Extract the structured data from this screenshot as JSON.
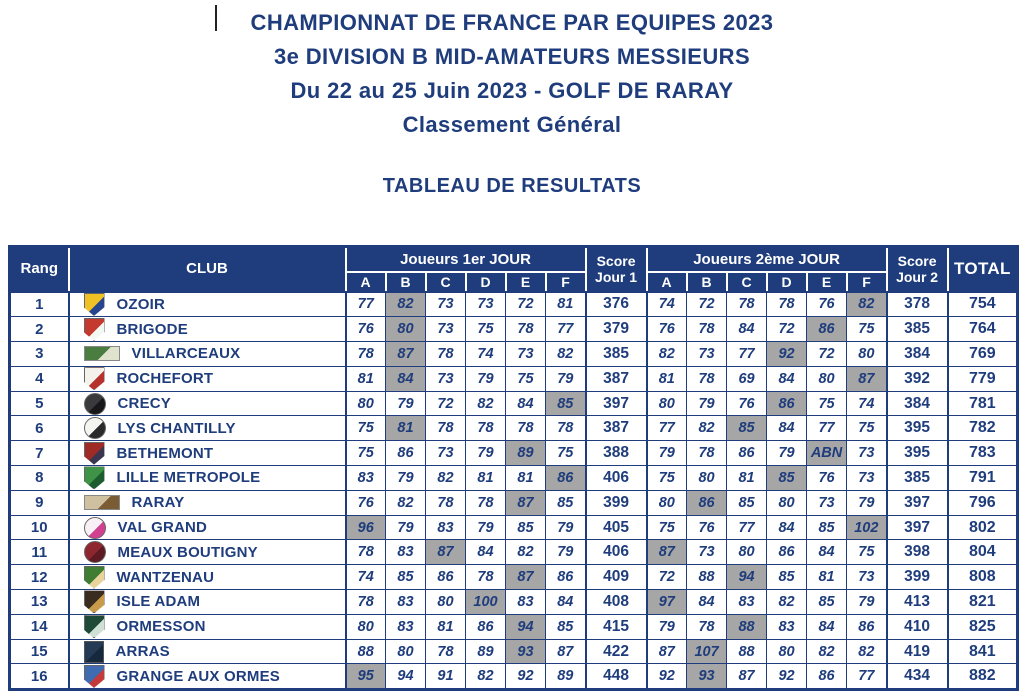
{
  "header": {
    "line1": "CHAMPIONNAT DE FRANCE PAR EQUIPES 2023",
    "line2": "3e DIVISION B MID-AMATEURS MESSIEURS",
    "line3": "Du 22 au 25 Juin 2023 - GOLF DE RARAY",
    "line4": "Classement Général",
    "section_title": "TABLEAU DE RESULTATS"
  },
  "colors": {
    "navy": "#1f3d7c",
    "highlight_gray": "#a6a6a6",
    "header_text": "#ffffff",
    "background": "#ffffff"
  },
  "table": {
    "headers": {
      "rank": "Rang",
      "club": "CLUB",
      "day1_group": "Joueurs 1er JOUR",
      "day2_group": "Joueurs 2ème JOUR",
      "players": [
        "A",
        "B",
        "C",
        "D",
        "E",
        "F"
      ],
      "score_day1_line1": "Score",
      "score_day1_line2": "Jour 1",
      "score_day2_line1": "Score",
      "score_day2_line2": "Jour 2",
      "total": "TOTAL"
    },
    "rows": [
      {
        "rank": "1",
        "club": "OZOIR",
        "logo": {
          "shape": "shield",
          "colors": [
            "#f0c125",
            "#27448f"
          ]
        },
        "day1": [
          "77",
          "82",
          "73",
          "73",
          "72",
          "81"
        ],
        "day1_discard": 1,
        "score1": "376",
        "day2": [
          "74",
          "72",
          "78",
          "78",
          "76",
          "82"
        ],
        "day2_discard": 5,
        "score2": "378",
        "total": "754"
      },
      {
        "rank": "2",
        "club": "BRIGODE",
        "logo": {
          "shape": "shield",
          "colors": [
            "#c43a2e",
            "#f4f8f2"
          ]
        },
        "day1": [
          "76",
          "80",
          "73",
          "75",
          "78",
          "77"
        ],
        "day1_discard": 1,
        "score1": "379",
        "day2": [
          "76",
          "78",
          "84",
          "72",
          "86",
          "75"
        ],
        "day2_discard": 4,
        "score2": "385",
        "total": "764"
      },
      {
        "rank": "3",
        "club": "VILLARCEAUX",
        "logo": {
          "shape": "banner",
          "colors": [
            "#4a7d3f",
            "#dfe3cd"
          ]
        },
        "day1": [
          "78",
          "87",
          "78",
          "74",
          "73",
          "82"
        ],
        "day1_discard": 1,
        "score1": "385",
        "day2": [
          "82",
          "73",
          "77",
          "92",
          "72",
          "80"
        ],
        "day2_discard": 3,
        "score2": "384",
        "total": "769"
      },
      {
        "rank": "4",
        "club": "ROCHEFORT",
        "logo": {
          "shape": "shield",
          "colors": [
            "#f5f2ec",
            "#b5332c"
          ]
        },
        "day1": [
          "81",
          "84",
          "73",
          "79",
          "75",
          "79"
        ],
        "day1_discard": 1,
        "score1": "387",
        "day2": [
          "81",
          "78",
          "69",
          "84",
          "80",
          "87"
        ],
        "day2_discard": 5,
        "score2": "392",
        "total": "779"
      },
      {
        "rank": "5",
        "club": "CRECY",
        "logo": {
          "shape": "round",
          "colors": [
            "#3a3a3c",
            "#17171a"
          ]
        },
        "day1": [
          "80",
          "79",
          "72",
          "82",
          "84",
          "85"
        ],
        "day1_discard": 5,
        "score1": "397",
        "day2": [
          "80",
          "79",
          "76",
          "86",
          "75",
          "74"
        ],
        "day2_discard": 3,
        "score2": "384",
        "total": "781"
      },
      {
        "rank": "6",
        "club": "LYS CHANTILLY",
        "logo": {
          "shape": "round",
          "colors": [
            "#f4f4f0",
            "#2b2b2b"
          ]
        },
        "day1": [
          "75",
          "81",
          "78",
          "78",
          "78",
          "78"
        ],
        "day1_discard": 1,
        "score1": "387",
        "day2": [
          "77",
          "82",
          "85",
          "84",
          "77",
          "75"
        ],
        "day2_discard": 2,
        "score2": "395",
        "total": "782"
      },
      {
        "rank": "7",
        "club": "BETHEMONT",
        "logo": {
          "shape": "shield",
          "colors": [
            "#9e2b25",
            "#3a3550"
          ]
        },
        "day1": [
          "75",
          "86",
          "73",
          "79",
          "89",
          "75"
        ],
        "day1_discard": 4,
        "score1": "388",
        "day2": [
          "79",
          "78",
          "86",
          "79",
          "ABN",
          "73"
        ],
        "day2_discard": 4,
        "score2": "395",
        "total": "783"
      },
      {
        "rank": "8",
        "club": "LILLE METROPOLE",
        "logo": {
          "shape": "shield",
          "colors": [
            "#3f9347",
            "#1c5c2e"
          ]
        },
        "day1": [
          "83",
          "79",
          "82",
          "81",
          "81",
          "86"
        ],
        "day1_discard": 5,
        "score1": "406",
        "day2": [
          "75",
          "80",
          "81",
          "85",
          "76",
          "73"
        ],
        "day2_discard": 3,
        "score2": "385",
        "total": "791"
      },
      {
        "rank": "9",
        "club": "RARAY",
        "logo": {
          "shape": "banner",
          "colors": [
            "#cfc0a0",
            "#7a5c35"
          ]
        },
        "day1": [
          "76",
          "82",
          "78",
          "78",
          "87",
          "85"
        ],
        "day1_discard": 4,
        "score1": "399",
        "day2": [
          "80",
          "86",
          "85",
          "80",
          "73",
          "79"
        ],
        "day2_discard": 1,
        "score2": "397",
        "total": "796"
      },
      {
        "rank": "10",
        "club": "VAL GRAND",
        "logo": {
          "shape": "round",
          "colors": [
            "#f8f0f5",
            "#d2418f"
          ]
        },
        "day1": [
          "96",
          "79",
          "83",
          "79",
          "85",
          "79"
        ],
        "day1_discard": 0,
        "score1": "405",
        "day2": [
          "75",
          "76",
          "77",
          "84",
          "85",
          "102"
        ],
        "day2_discard": 5,
        "score2": "397",
        "total": "802"
      },
      {
        "rank": "11",
        "club": "MEAUX BOUTIGNY",
        "logo": {
          "shape": "round",
          "colors": [
            "#8e2630",
            "#5e1a22"
          ]
        },
        "day1": [
          "78",
          "83",
          "87",
          "84",
          "82",
          "79"
        ],
        "day1_discard": 2,
        "score1": "406",
        "day2": [
          "87",
          "73",
          "80",
          "86",
          "84",
          "75"
        ],
        "day2_discard": 0,
        "score2": "398",
        "total": "804"
      },
      {
        "rank": "12",
        "club": "WANTZENAU",
        "logo": {
          "shape": "shield",
          "colors": [
            "#3f7d33",
            "#e8d49a"
          ]
        },
        "day1": [
          "74",
          "85",
          "86",
          "78",
          "87",
          "86"
        ],
        "day1_discard": 4,
        "score1": "409",
        "day2": [
          "72",
          "88",
          "94",
          "85",
          "81",
          "73"
        ],
        "day2_discard": 2,
        "score2": "399",
        "total": "808"
      },
      {
        "rank": "13",
        "club": "ISLE ADAM",
        "logo": {
          "shape": "shield",
          "colors": [
            "#3a2c1e",
            "#c79b4a"
          ]
        },
        "day1": [
          "78",
          "83",
          "80",
          "100",
          "83",
          "84"
        ],
        "day1_discard": 3,
        "score1": "408",
        "day2": [
          "97",
          "84",
          "83",
          "82",
          "85",
          "79"
        ],
        "day2_discard": 0,
        "score2": "413",
        "total": "821"
      },
      {
        "rank": "14",
        "club": "ORMESSON",
        "logo": {
          "shape": "shield",
          "colors": [
            "#1f4a38",
            "#cfe0d5"
          ]
        },
        "day1": [
          "80",
          "83",
          "81",
          "86",
          "94",
          "85"
        ],
        "day1_discard": 4,
        "score1": "415",
        "day2": [
          "79",
          "78",
          "88",
          "83",
          "84",
          "86"
        ],
        "day2_discard": 2,
        "score2": "410",
        "total": "825"
      },
      {
        "rank": "15",
        "club": "ARRAS",
        "logo": {
          "shape": "square",
          "colors": [
            "#243a55",
            "#16283c"
          ]
        },
        "day1": [
          "88",
          "80",
          "78",
          "89",
          "93",
          "87"
        ],
        "day1_discard": 4,
        "score1": "422",
        "day2": [
          "87",
          "107",
          "88",
          "80",
          "82",
          "82"
        ],
        "day2_discard": 1,
        "score2": "419",
        "total": "841"
      },
      {
        "rank": "16",
        "club": "GRANGE AUX ORMES",
        "logo": {
          "shape": "shield",
          "colors": [
            "#3f6cb0",
            "#c23a3a"
          ]
        },
        "day1": [
          "95",
          "94",
          "91",
          "82",
          "92",
          "89"
        ],
        "day1_discard": 0,
        "score1": "448",
        "day2": [
          "92",
          "93",
          "87",
          "92",
          "86",
          "77"
        ],
        "day2_discard": 1,
        "score2": "434",
        "total": "882"
      }
    ]
  }
}
